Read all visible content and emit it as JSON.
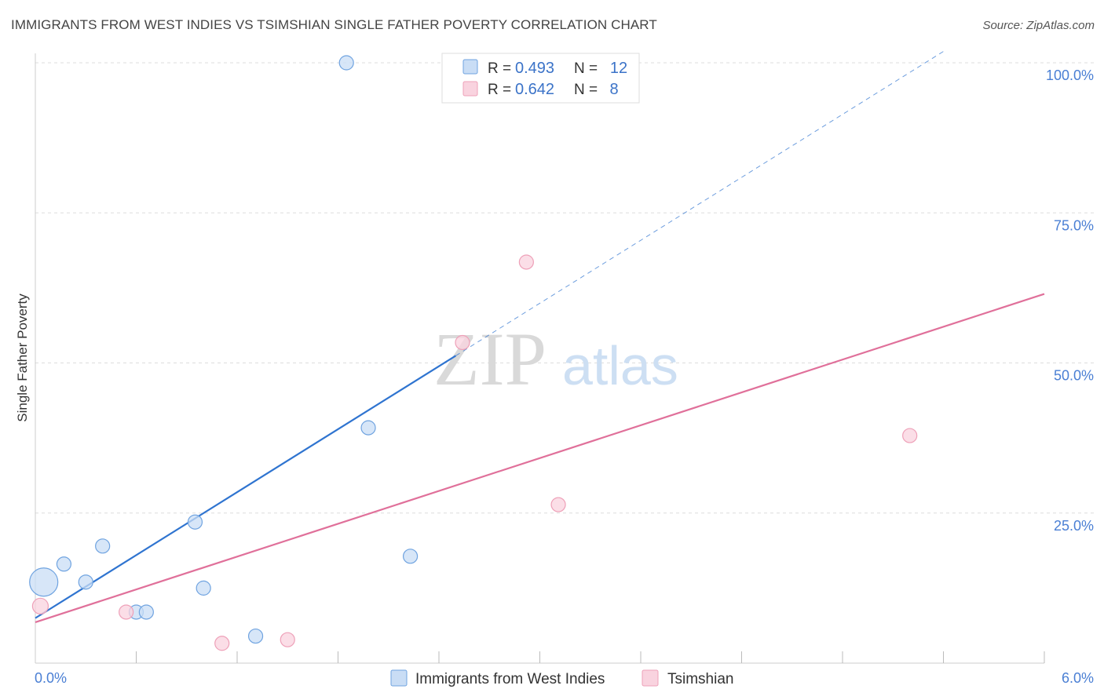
{
  "chart_data": {
    "type": "scatter",
    "title": "IMMIGRANTS FROM WEST INDIES VS TSIMSHIAN SINGLE FATHER POVERTY CORRELATION CHART",
    "source": "Source: ZipAtlas.com",
    "xlabel": "",
    "ylabel": "Single Father Poverty",
    "xlim": [
      0,
      6
    ],
    "ylim": [
      0,
      100
    ],
    "x_tick_labels": [
      "0.0%",
      "6.0%"
    ],
    "y_ticks": [
      25,
      50,
      75,
      100
    ],
    "y_tick_labels": [
      "25.0%",
      "50.0%",
      "75.0%",
      "100.0%"
    ],
    "watermark": {
      "zip": "ZIP",
      "atlas": "atlas"
    },
    "legend_stats": [
      {
        "r_label": "R =",
        "r_value": "0.493",
        "n_label": "N =",
        "n_value": "12"
      },
      {
        "r_label": "R =",
        "r_value": "0.642",
        "n_label": "N =",
        "n_value": "8"
      }
    ],
    "series": [
      {
        "name": "Immigrants from West Indies",
        "color": "#6fa3e0",
        "fill": "#c9ddf5",
        "line_color": "#2f74d0",
        "trend": {
          "x_start": 0.0,
          "y_start": 7.5,
          "x_end": 2.5,
          "y_end": 51.2,
          "x_dash_end": 5.4
        },
        "points": [
          {
            "x": 0.05,
            "y": 13.5,
            "size": 18
          },
          {
            "x": 0.17,
            "y": 16.5,
            "size": 9
          },
          {
            "x": 0.3,
            "y": 13.5,
            "size": 9
          },
          {
            "x": 0.4,
            "y": 19.5,
            "size": 9
          },
          {
            "x": 0.6,
            "y": 8.5,
            "size": 9
          },
          {
            "x": 0.66,
            "y": 8.5,
            "size": 9
          },
          {
            "x": 0.95,
            "y": 23.5,
            "size": 9
          },
          {
            "x": 1.0,
            "y": 12.5,
            "size": 9
          },
          {
            "x": 1.31,
            "y": 4.5,
            "size": 9
          },
          {
            "x": 1.85,
            "y": 100.0,
            "size": 9
          },
          {
            "x": 1.98,
            "y": 39.2,
            "size": 9
          },
          {
            "x": 2.23,
            "y": 17.8,
            "size": 9
          }
        ]
      },
      {
        "name": "Tsimshian",
        "color": "#eea0b8",
        "fill": "#f9d3df",
        "line_color": "#e0709a",
        "trend": {
          "x_start": 0.0,
          "y_start": 6.8,
          "x_end": 6.0,
          "y_end": 61.5
        },
        "points": [
          {
            "x": 0.03,
            "y": 9.5,
            "size": 10
          },
          {
            "x": 0.54,
            "y": 8.5,
            "size": 9
          },
          {
            "x": 1.11,
            "y": 3.3,
            "size": 9
          },
          {
            "x": 1.5,
            "y": 3.9,
            "size": 9
          },
          {
            "x": 2.54,
            "y": 53.4,
            "size": 9
          },
          {
            "x": 2.92,
            "y": 66.8,
            "size": 9
          },
          {
            "x": 3.11,
            "y": 26.4,
            "size": 9
          },
          {
            "x": 5.2,
            "y": 37.9,
            "size": 9
          }
        ]
      }
    ]
  }
}
